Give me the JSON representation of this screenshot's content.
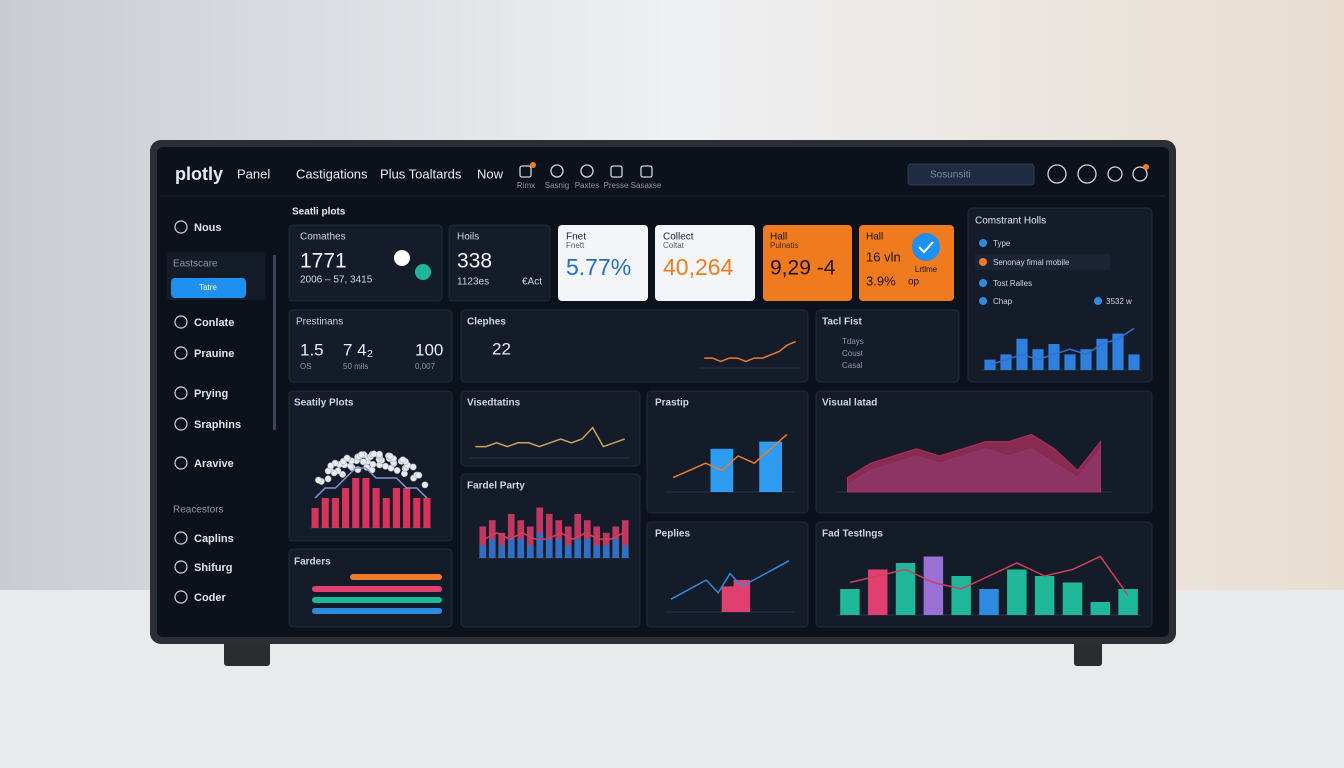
{
  "header": {
    "logo": "plotly",
    "product": "Panel",
    "nav": [
      "Castigations",
      "Plus Toaltards",
      "Now"
    ],
    "tools": [
      "Rimx",
      "Sasnig",
      "Paxtes",
      "Presse",
      "Sasaxse"
    ],
    "search": "Sosunsiti"
  },
  "sidebar": {
    "top": "Nous",
    "section": "Eastscare",
    "button": "Tatre",
    "items": [
      "Conlate",
      "Prauine",
      "Prying",
      "Sraphins",
      "Aravive"
    ],
    "section2": "Reacestors",
    "items2": [
      "Caplins",
      "Shifurg",
      "Coder"
    ]
  },
  "page_title": "Seatli plots",
  "kpis": [
    {
      "title": "Comathes",
      "value": "1771",
      "note": "2006 – 57, 3415"
    },
    {
      "title": "Hoils",
      "value": "338",
      "note": "1123es",
      "extra": "€Act"
    },
    {
      "title": "Fnet",
      "sub": "Fnett",
      "value": "5.77%"
    },
    {
      "title": "Collect",
      "sub": "Coltat",
      "value": "40,264"
    },
    {
      "title": "Hall",
      "sub": "Pulnatis",
      "value": "9,29 -4"
    },
    {
      "title": "Hall",
      "value": "16 vln",
      "value2": "3.9%",
      "extra": "op",
      "badge": "Lrtlme"
    }
  ],
  "right_panel": {
    "title": "Comstrant Holls",
    "items": [
      "Type",
      "Senonay fimal mobile",
      "Tost Ralles",
      "Chap"
    ],
    "stat": "3532 w"
  },
  "prestinans": {
    "title": "Prestinans",
    "values": [
      "1.5",
      "7 4₂",
      "100"
    ],
    "subs": [
      "OS",
      "50 mils",
      "0,007"
    ]
  },
  "clephes": {
    "title": "Clephes",
    "value": "22"
  },
  "tacl": {
    "title": "Tacl Fist",
    "rows": [
      "Coust",
      "Casal",
      "Tdays"
    ]
  },
  "panels": [
    "Seatily Plots",
    "Visedtatins",
    "Prastip",
    "Visual latad",
    "Farders",
    "Fardel Party",
    "Peplies",
    "Fad Testlngs"
  ],
  "charts": {
    "right": {
      "ylim": [
        0,
        10
      ],
      "bars": [
        2,
        3,
        6,
        4,
        5,
        3,
        4,
        6,
        7,
        3
      ],
      "line": [
        1,
        2,
        3,
        2,
        3,
        4,
        3,
        5,
        6,
        8
      ],
      "bar_color": "#2f7fe0",
      "line_color": "#3a6fc4"
    },
    "clephes": {
      "ylim": [
        0,
        10
      ],
      "line": [
        3,
        3,
        2,
        3,
        3,
        2,
        3,
        3,
        4,
        5,
        7,
        8
      ],
      "line_color": "#f07a2a"
    },
    "seatily": {
      "ylim": [
        0,
        10
      ],
      "bars": [
        2,
        3,
        3,
        4,
        5,
        5,
        4,
        3,
        4,
        4,
        3,
        3
      ],
      "line": [
        3,
        4,
        4,
        5,
        6,
        6,
        5,
        5,
        5,
        4,
        4,
        3
      ],
      "bar_color": "#d6345a",
      "line_color": "#8a8fd6"
    },
    "visedtatins": {
      "ylim": [
        0,
        10
      ],
      "line": [
        3,
        3,
        4,
        3,
        4,
        4,
        3,
        4,
        5,
        4,
        5,
        8,
        3,
        4,
        5
      ],
      "line_color": "#c9a45a"
    },
    "prastip": {
      "ylim": [
        0,
        10
      ],
      "bars": [
        null,
        null,
        null,
        6,
        null,
        null,
        7,
        null
      ],
      "line": [
        2,
        3,
        4,
        3,
        5,
        4,
        6,
        8
      ],
      "bar_color": "#2e9cf0",
      "line_color": "#f07a2a"
    },
    "visual": {
      "ylim": [
        0,
        10
      ],
      "area": [
        2,
        4,
        5,
        6,
        5,
        6,
        7,
        7,
        8,
        6,
        3,
        7
      ],
      "area2": [
        1,
        3,
        4,
        5,
        4,
        5,
        6,
        5,
        6,
        4,
        2,
        6
      ],
      "bar_color": "#b0305e",
      "line_color": "#2f4f9a"
    },
    "fardel": {
      "ylim": [
        0,
        10
      ],
      "bars": [
        5,
        6,
        4,
        7,
        6,
        5,
        8,
        7,
        6,
        5,
        7,
        6,
        5,
        4,
        5,
        6
      ],
      "bars2": [
        2,
        3,
        2,
        3,
        3,
        2,
        4,
        3,
        3,
        2,
        3,
        3,
        2,
        2,
        3,
        2
      ],
      "line": [
        3,
        4,
        3,
        4,
        3,
        3,
        4,
        3,
        4,
        3,
        3,
        4
      ],
      "bar_color": "#c0385f",
      "bar2_color": "#2f6fc4",
      "line_color": "#d0405a"
    },
    "peplies": {
      "ylim": [
        0,
        10
      ],
      "line": [
        2,
        3,
        4,
        5,
        3,
        6,
        4,
        5,
        6,
        7,
        8
      ],
      "bars": [
        null,
        null,
        null,
        null,
        null,
        4,
        5,
        null,
        null,
        null,
        null
      ],
      "bar_color": "#e04070",
      "line_color": "#2e8ce0"
    },
    "fad": {
      "ylim": [
        0,
        10
      ],
      "bars": [
        4,
        7,
        8,
        9,
        6,
        4,
        7,
        6,
        5,
        2,
        4
      ],
      "line": [
        5,
        6,
        7,
        5,
        4,
        6,
        8,
        6,
        7,
        9,
        3
      ],
      "bar_colors": [
        "#1fb89a",
        "#e04070",
        "#1fb89a",
        "#9a6fd6",
        "#1fb89a",
        "#2e8ce0",
        "#1fb89a",
        "#1fb89a",
        "#1fb89a",
        "#1fb89a",
        "#1fb89a"
      ],
      "line_color": "#d0405a"
    }
  }
}
